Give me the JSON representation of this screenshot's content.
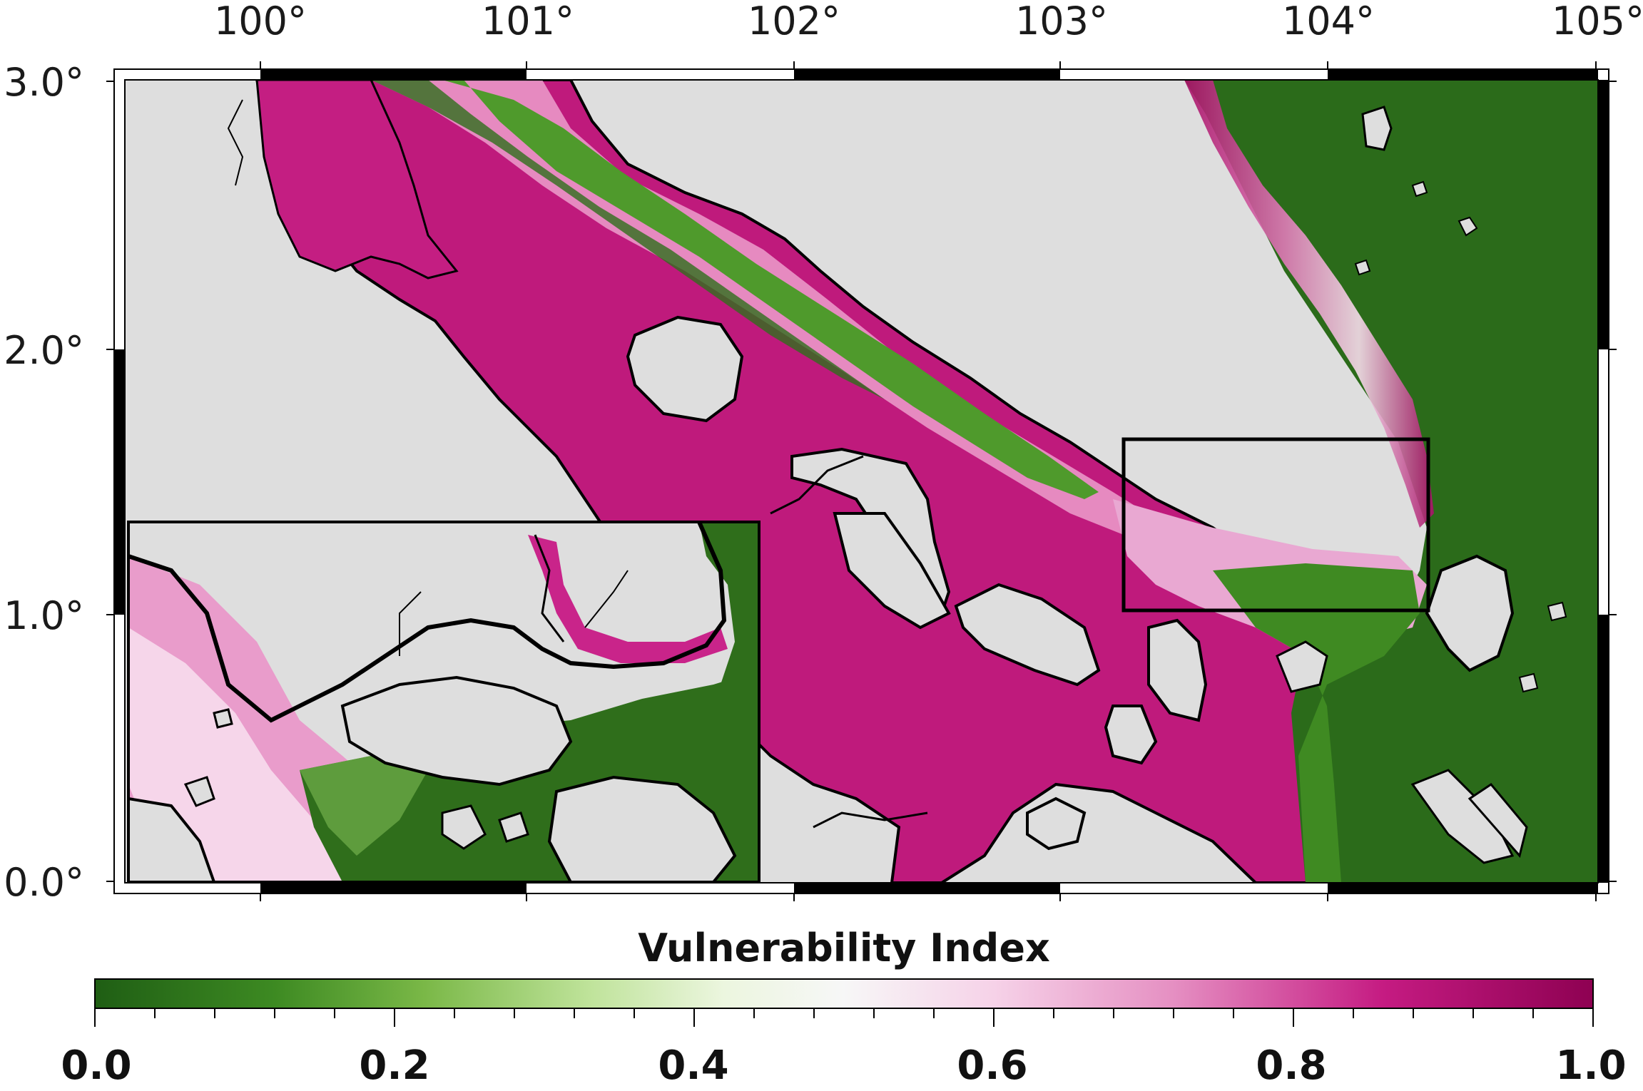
{
  "figure": {
    "lon_ticks": [
      "100°",
      "101°",
      "102°",
      "103°",
      "104°",
      "105°"
    ],
    "lat_ticks": [
      "3.0°",
      "2.0°",
      "1.0°",
      "0.0°"
    ],
    "extent": {
      "lon": [
        99.45,
        105.05
      ],
      "lat": [
        -0.05,
        3.05
      ]
    },
    "inset_region": {
      "lon": [
        103.25,
        104.4
      ],
      "lat": [
        1.02,
        1.66
      ]
    }
  },
  "colorbar": {
    "title": "Vulnerability Index",
    "tick_labels": [
      "0.0",
      "0.2",
      "0.4",
      "0.6",
      "0.8",
      "1.0"
    ],
    "range": [
      0.0,
      1.0
    ],
    "colors": [
      "#1f5e14",
      "#4c9a2a",
      "#8ec957",
      "#d4eeb0",
      "#f7f7f7",
      "#f6cfe6",
      "#de79b5",
      "#c2177f",
      "#8c0a55"
    ]
  },
  "colors": {
    "land": "#dedede",
    "coast": "#000000",
    "high_vulnerability": "#b8116f",
    "mid_vulnerability": "#f2c2df",
    "low_vulnerability": "#2d6d1c"
  }
}
